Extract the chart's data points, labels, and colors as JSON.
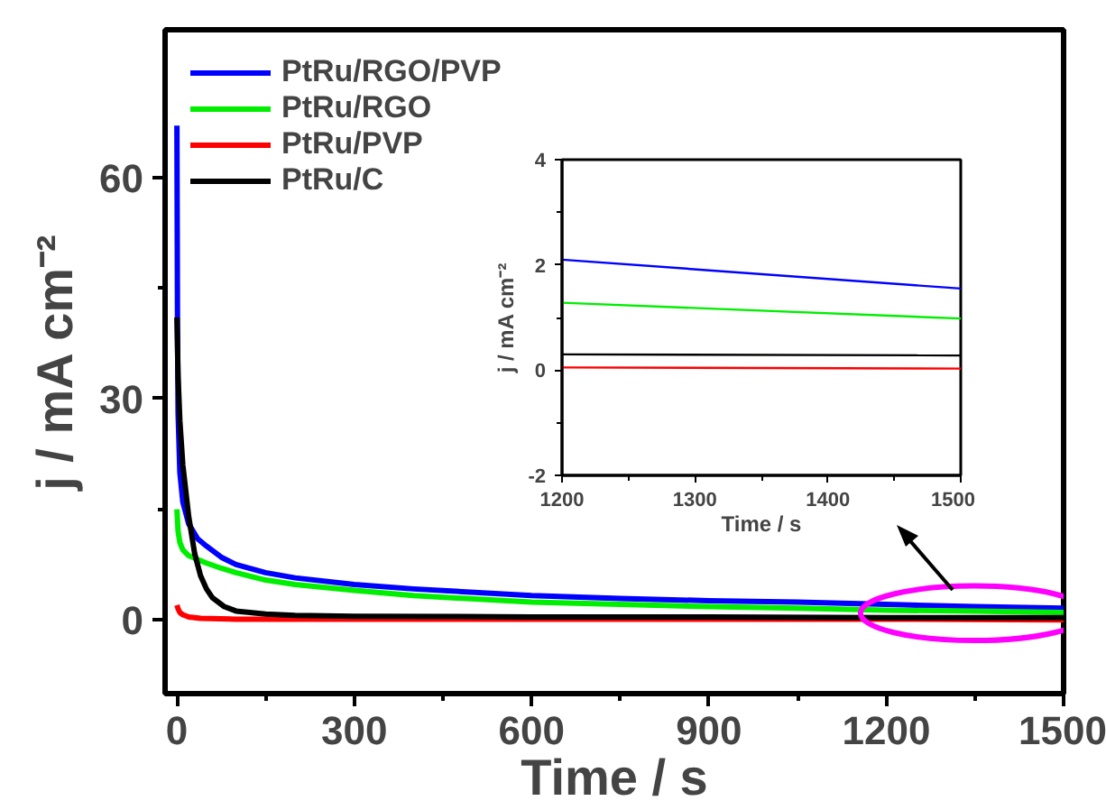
{
  "chart_data": [
    {
      "type": "line",
      "xlabel": "Time / s",
      "ylabel": "j / mA cm⁻²",
      "xlim": [
        -20,
        1500
      ],
      "ylim": [
        -10,
        80
      ],
      "xticks": [
        0,
        300,
        600,
        900,
        1200,
        1500
      ],
      "yticks": [
        0,
        30,
        60
      ],
      "legend": "top left",
      "grid": false,
      "series": [
        {
          "name": "PtRu/RGO/PVP",
          "color": "#0000ff",
          "x": [
            0,
            1,
            2,
            5,
            10,
            20,
            35,
            50,
            75,
            100,
            150,
            200,
            300,
            400,
            600,
            750,
            900,
            1050,
            1200,
            1350,
            1500
          ],
          "values": [
            67,
            40,
            28,
            20,
            16,
            13,
            11,
            10,
            8.5,
            7.5,
            6.4,
            5.7,
            4.8,
            4.2,
            3.3,
            2.9,
            2.6,
            2.4,
            2.1,
            1.8,
            1.6
          ]
        },
        {
          "name": "PtRu/RGO",
          "color": "#00ee00",
          "x": [
            0,
            2,
            5,
            10,
            20,
            35,
            50,
            75,
            100,
            150,
            200,
            300,
            400,
            600,
            750,
            900,
            1050,
            1200,
            1350,
            1500
          ],
          "values": [
            15,
            12,
            10.5,
            9.5,
            8.7,
            8.2,
            7.7,
            7,
            6.4,
            5.4,
            4.8,
            4,
            3.3,
            2.4,
            2.1,
            1.8,
            1.6,
            1.3,
            1.2,
            1.0
          ]
        },
        {
          "name": "PtRu/PVP",
          "color": "#ff0000",
          "x": [
            0,
            2,
            5,
            10,
            20,
            40,
            100,
            300,
            600,
            900,
            1200,
            1500
          ],
          "values": [
            2,
            1.5,
            1,
            0.7,
            0.4,
            0.2,
            0.1,
            0.1,
            0.1,
            0.1,
            0.1,
            0.0
          ]
        },
        {
          "name": "PtRu/C",
          "color": "#000000",
          "x": [
            0,
            2,
            5,
            10,
            20,
            30,
            40,
            50,
            60,
            80,
            100,
            150,
            200,
            300,
            600,
            900,
            1200,
            1500
          ],
          "values": [
            41,
            33,
            27,
            21,
            14,
            9,
            6,
            4.2,
            3,
            1.8,
            1.2,
            0.8,
            0.6,
            0.5,
            0.4,
            0.4,
            0.3,
            0.3
          ]
        }
      ]
    },
    {
      "type": "line",
      "xlabel": "Time / s",
      "ylabel": "j / mA cm⁻²",
      "xlim": [
        1200,
        1500
      ],
      "ylim": [
        -2,
        4
      ],
      "xticks": [
        1200,
        1300,
        1400,
        1500
      ],
      "yticks": [
        -2,
        0,
        2,
        4
      ],
      "grid": false,
      "series": [
        {
          "color": "#0000ff",
          "x": [
            1200,
            1500
          ],
          "values": [
            2.1,
            1.55
          ]
        },
        {
          "color": "#00ee00",
          "x": [
            1200,
            1500
          ],
          "values": [
            1.28,
            0.98
          ]
        },
        {
          "color": "#ff0000",
          "x": [
            1200,
            1500
          ],
          "values": [
            0.05,
            0.03
          ]
        },
        {
          "color": "#000000",
          "x": [
            1200,
            1500
          ],
          "values": [
            0.3,
            0.28
          ]
        }
      ]
    }
  ]
}
